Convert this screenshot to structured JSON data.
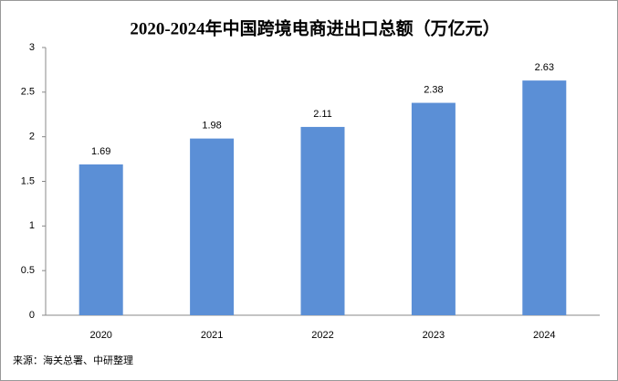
{
  "chart_data": {
    "type": "bar",
    "title": "2020-2024年中国跨境电商进出口总额（万亿元）",
    "categories": [
      "2020",
      "2021",
      "2022",
      "2023",
      "2024"
    ],
    "values": [
      1.69,
      1.98,
      2.11,
      2.38,
      2.63
    ],
    "color": "#5b8fd6",
    "ylim": [
      0,
      3
    ],
    "yticks": [
      0,
      0.5,
      1,
      1.5,
      2,
      2.5,
      3
    ],
    "grid": false,
    "source": "来源：海关总署、中研整理"
  }
}
